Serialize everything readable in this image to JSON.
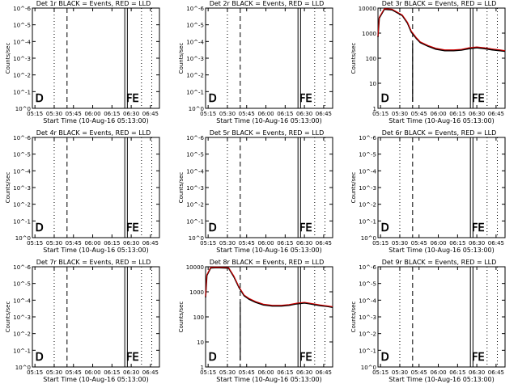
{
  "figure": {
    "title": ""
  },
  "chart_data": [
    {
      "type": "line",
      "title": "Det 1r BLACK = Events, RED = LLD",
      "xlabel": "Start Time (10-Aug-16 05:13:00)",
      "ylabel": "Counts/sec",
      "log": true,
      "yticks": [
        "10^0",
        "10^-1",
        "10^-2",
        "10^-3",
        "10^-4",
        "10^-5",
        "10^-6"
      ],
      "xticks": [
        "05:15",
        "05:30",
        "05:45",
        "06:00",
        "06:15",
        "06:30",
        "06:45"
      ],
      "markers": [
        {
          "label": "D",
          "x": "05:14"
        },
        {
          "label": "FE",
          "x": "06:28"
        }
      ],
      "series": []
    },
    {
      "type": "line",
      "title": "Det 2r BLACK = Events, RED = LLD",
      "xlabel": "Start Time (10-Aug-16 05:13:00)",
      "ylabel": "Counts/sec",
      "log": true,
      "yticks": [
        "10^0",
        "10^-1",
        "10^-2",
        "10^-3",
        "10^-4",
        "10^-5",
        "10^-6"
      ],
      "xticks": [
        "05:15",
        "05:30",
        "05:45",
        "06:00",
        "06:15",
        "06:30",
        "06:45"
      ],
      "markers": [
        {
          "label": "D",
          "x": "05:14"
        },
        {
          "label": "FE",
          "x": "06:28"
        }
      ],
      "series": []
    },
    {
      "type": "line",
      "title": "Det 3r BLACK = Events, RED = LLD",
      "xlabel": "Start Time (10-Aug-16 05:13:00)",
      "ylabel": "Counts/sec",
      "log": true,
      "yticks": [
        "1",
        "10",
        "100",
        "1000",
        "10000"
      ],
      "xticks": [
        "05:15",
        "05:30",
        "05:45",
        "06:00",
        "06:15",
        "06:30",
        "06:45"
      ],
      "markers": [
        {
          "label": "D",
          "x": "05:14"
        },
        {
          "label": "FE",
          "x": "06:28"
        }
      ],
      "series": [
        {
          "color": "#000000",
          "x": [
            "05:13",
            "05:14",
            "05:18",
            "05:24",
            "05:32",
            "05:36",
            "05:39",
            "05:43",
            "05:46",
            "05:52",
            "05:58",
            "06:05",
            "06:12",
            "06:18",
            "06:24",
            "06:30",
            "06:36",
            "06:42",
            "06:48",
            "06:52"
          ],
          "values": [
            700,
            4000,
            9000,
            8500,
            5000,
            2500,
            1100,
            600,
            420,
            300,
            230,
            200,
            200,
            210,
            240,
            260,
            240,
            215,
            200,
            190
          ]
        },
        {
          "color": "#cc0000",
          "x": [
            "05:13",
            "05:14",
            "05:18",
            "05:24",
            "05:32",
            "05:36",
            "05:39",
            "05:43",
            "05:46",
            "05:52",
            "05:58",
            "06:05",
            "06:12",
            "06:18",
            "06:24",
            "06:30",
            "06:36",
            "06:42",
            "06:48",
            "06:52"
          ],
          "values": [
            750,
            4300,
            9500,
            9000,
            5300,
            2700,
            1200,
            650,
            450,
            320,
            250,
            215,
            215,
            225,
            260,
            280,
            260,
            235,
            215,
            200
          ]
        }
      ]
    },
    {
      "type": "line",
      "title": "Det 4r BLACK = Events, RED = LLD",
      "xlabel": "Start Time (10-Aug-16 05:13:00)",
      "ylabel": "Counts/sec",
      "log": true,
      "yticks": [
        "10^0",
        "10^-1",
        "10^-2",
        "10^-3",
        "10^-4",
        "10^-5",
        "10^-6"
      ],
      "xticks": [
        "05:15",
        "05:30",
        "05:45",
        "06:00",
        "06:15",
        "06:30",
        "06:45"
      ],
      "markers": [
        {
          "label": "D",
          "x": "05:14"
        },
        {
          "label": "FE",
          "x": "06:28"
        }
      ],
      "series": []
    },
    {
      "type": "line",
      "title": "Det 5r BLACK = Events, RED = LLD",
      "xlabel": "Start Time (10-Aug-16 05:13:00)",
      "ylabel": "Counts/sec",
      "log": true,
      "yticks": [
        "10^0",
        "10^-1",
        "10^-2",
        "10^-3",
        "10^-4",
        "10^-5",
        "10^-6"
      ],
      "xticks": [
        "05:15",
        "05:30",
        "05:45",
        "06:00",
        "06:15",
        "06:30",
        "06:45"
      ],
      "markers": [
        {
          "label": "D",
          "x": "05:14"
        },
        {
          "label": "FE",
          "x": "06:28"
        }
      ],
      "series": []
    },
    {
      "type": "line",
      "title": "Det 6r BLACK = Events, RED = LLD",
      "xlabel": "Start Time (10-Aug-16 05:13:00)",
      "ylabel": "Counts/sec",
      "log": true,
      "yticks": [
        "10^0",
        "10^-1",
        "10^-2",
        "10^-3",
        "10^-4",
        "10^-5",
        "10^-6"
      ],
      "xticks": [
        "05:15",
        "05:30",
        "05:45",
        "06:00",
        "06:15",
        "06:30",
        "06:45"
      ],
      "markers": [
        {
          "label": "D",
          "x": "05:14"
        },
        {
          "label": "FE",
          "x": "06:28"
        }
      ],
      "series": []
    },
    {
      "type": "line",
      "title": "Det 7r BLACK = Events, RED = LLD",
      "xlabel": "Start Time (10-Aug-16 05:13:00)",
      "ylabel": "Counts/sec",
      "log": true,
      "yticks": [
        "10^0",
        "10^-1",
        "10^-2",
        "10^-3",
        "10^-4",
        "10^-5",
        "10^-6"
      ],
      "xticks": [
        "05:15",
        "05:30",
        "05:45",
        "06:00",
        "06:15",
        "06:30",
        "06:45"
      ],
      "markers": [
        {
          "label": "D",
          "x": "05:14"
        },
        {
          "label": "FE",
          "x": "06:28"
        }
      ],
      "series": []
    },
    {
      "type": "line",
      "title": "Det 8r BLACK = Events, RED = LLD",
      "xlabel": "Start Time (10-Aug-16 05:13:00)",
      "ylabel": "Counts/sec",
      "log": true,
      "yticks": [
        "1",
        "10",
        "100",
        "1000",
        "10000"
      ],
      "xticks": [
        "05:15",
        "05:30",
        "05:45",
        "06:00",
        "06:15",
        "06:30",
        "06:45"
      ],
      "markers": [
        {
          "label": "D",
          "x": "05:14"
        },
        {
          "label": "FE",
          "x": "06:28"
        }
      ],
      "series": [
        {
          "color": "#000000",
          "x": [
            "05:13",
            "05:14",
            "05:17",
            "05:22",
            "05:31",
            "05:35",
            "05:39",
            "05:43",
            "05:47",
            "05:52",
            "05:58",
            "06:05",
            "06:12",
            "06:18",
            "06:24",
            "06:30",
            "06:36",
            "06:42",
            "06:48",
            "06:52"
          ],
          "values": [
            600,
            4500,
            9000,
            9200,
            8800,
            4000,
            1500,
            700,
            500,
            380,
            300,
            270,
            270,
            290,
            330,
            360,
            320,
            280,
            260,
            240
          ]
        },
        {
          "color": "#cc0000",
          "x": [
            "05:13",
            "05:14",
            "05:17",
            "05:22",
            "05:31",
            "05:35",
            "05:39",
            "05:43",
            "05:47",
            "05:52",
            "05:58",
            "06:05",
            "06:12",
            "06:18",
            "06:24",
            "06:30",
            "06:36",
            "06:42",
            "06:48",
            "06:52"
          ],
          "values": [
            650,
            4800,
            9500,
            9700,
            9200,
            4300,
            1600,
            750,
            540,
            410,
            320,
            290,
            290,
            310,
            350,
            380,
            340,
            300,
            275,
            255
          ]
        }
      ]
    },
    {
      "type": "line",
      "title": "Det 9r BLACK = Events, RED = LLD",
      "xlabel": "Start Time (10-Aug-16 05:13:00)",
      "ylabel": "Counts/sec",
      "log": true,
      "yticks": [
        "10^0",
        "10^-1",
        "10^-2",
        "10^-3",
        "10^-4",
        "10^-5",
        "10^-6"
      ],
      "xticks": [
        "05:15",
        "05:30",
        "05:45",
        "06:00",
        "06:15",
        "06:30",
        "06:45"
      ],
      "markers": [
        {
          "label": "D",
          "x": "05:14"
        },
        {
          "label": "FE",
          "x": "06:28"
        }
      ],
      "series": []
    }
  ]
}
